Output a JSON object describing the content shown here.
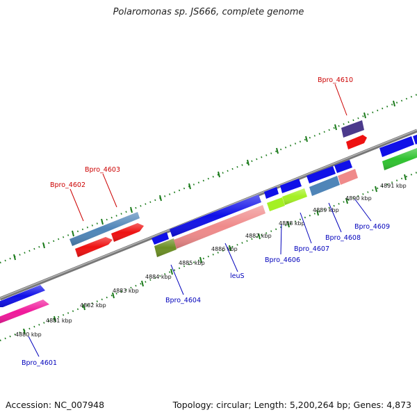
{
  "title": "Polaromonas sp. JS666, complete genome",
  "footer": {
    "accession": "Accession: NC_007948",
    "topology": "Topology: circular; Length: 5,200,264 bp; Genes: 4,873"
  },
  "colors": {
    "backbone": "#8a8a8a",
    "tick_green": "#1a7a1a",
    "label_plus": "#cc0000",
    "label_minus": "#0000bb",
    "blue": "#1010e8",
    "red": "#ee1111",
    "steel": "#4f85b8",
    "salmon": "#ef8a8a",
    "olive": "#6b8e23",
    "lime": "#a4f023",
    "magenta": "#f0189a",
    "purple": "#4b3a8c",
    "green": "#2fc22f"
  },
  "scale_labels": [
    "4880 kbp",
    "4881 kbp",
    "4882 kbp",
    "4883 kbp",
    "4884 kbp",
    "4885 kbp",
    "4886 kbp",
    "4887 kbp",
    "4888 kbp",
    "4889 kbp",
    "4890 kbp",
    "4891 kbp"
  ],
  "gene_labels": {
    "plus": [
      "Bpro_4602",
      "Bpro_4603",
      "Bpro_4610"
    ],
    "minus": [
      "Bpro_4601",
      "Bpro_4604",
      "leuS",
      "Bpro_4606",
      "Bpro_4607",
      "Bpro_4608",
      "Bpro_4609"
    ]
  }
}
